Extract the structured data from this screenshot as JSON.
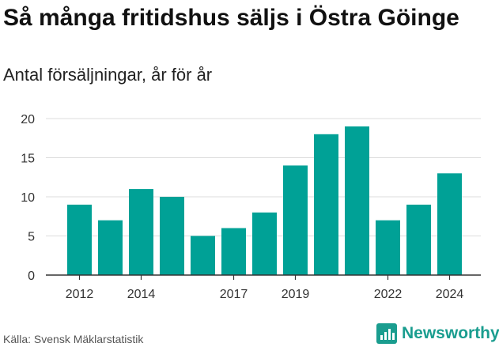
{
  "title": "Så många fritidshus säljs i Östra Göinge",
  "subtitle": "Antal försäljningar, år för år",
  "source": "Källa: Svensk Mäklarstatistik",
  "brand": {
    "name": "Newsworthy",
    "icon": "newsworthy-logo-icon"
  },
  "colors": {
    "bar": "#00a196",
    "grid": "#dddddd",
    "axis": "#333333",
    "brand": "#1a9d8f"
  },
  "chart_data": {
    "type": "bar",
    "categories": [
      "2012",
      "2013",
      "2014",
      "2015",
      "2016",
      "2017",
      "2018",
      "2019",
      "2020",
      "2021",
      "2022",
      "2023",
      "2024"
    ],
    "values": [
      9,
      7,
      11,
      10,
      5,
      6,
      8,
      14,
      18,
      19,
      7,
      9,
      13
    ],
    "x_tick_labels": [
      "2012",
      "",
      "2014",
      "",
      "",
      "2017",
      "",
      "2019",
      "",
      "",
      "2022",
      "",
      "2024"
    ],
    "y_ticks": [
      0,
      5,
      10,
      15,
      20
    ],
    "ylim": [
      0,
      20
    ],
    "grid": true,
    "legend": "none"
  }
}
